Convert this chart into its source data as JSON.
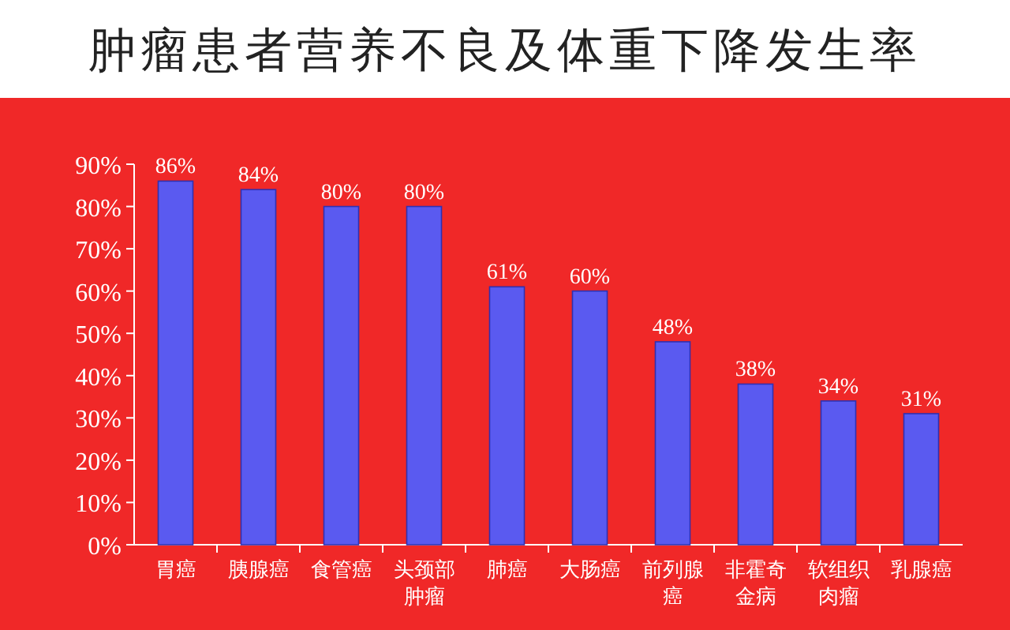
{
  "chart_data": {
    "type": "bar",
    "title": "肿瘤患者营养不良及体重下降发生率",
    "categories": [
      "胃癌",
      "胰腺癌",
      "食管癌",
      "头颈部肿瘤",
      "肺癌",
      "大肠癌",
      "前列腺癌",
      "非霍奇金病",
      "软组织肉瘤",
      "乳腺癌"
    ],
    "values": [
      86,
      84,
      80,
      80,
      61,
      60,
      48,
      38,
      34,
      31
    ],
    "value_labels": [
      "86%",
      "84%",
      "80%",
      "80%",
      "61%",
      "60%",
      "48%",
      "38%",
      "34%",
      "31%"
    ],
    "color": "#5a5af0",
    "ylim": [
      0,
      90
    ],
    "yticks": [
      {
        "value": 0,
        "label": "0%"
      },
      {
        "value": 10,
        "label": "10%"
      },
      {
        "value": 20,
        "label": "20%"
      },
      {
        "value": 30,
        "label": "30%"
      },
      {
        "value": 40,
        "label": "40%"
      },
      {
        "value": 50,
        "label": "50%"
      },
      {
        "value": 60,
        "label": "60%"
      },
      {
        "value": 70,
        "label": "70%"
      },
      {
        "value": 80,
        "label": "80%"
      },
      {
        "value": 90,
        "label": "90%"
      }
    ],
    "grid": false
  }
}
